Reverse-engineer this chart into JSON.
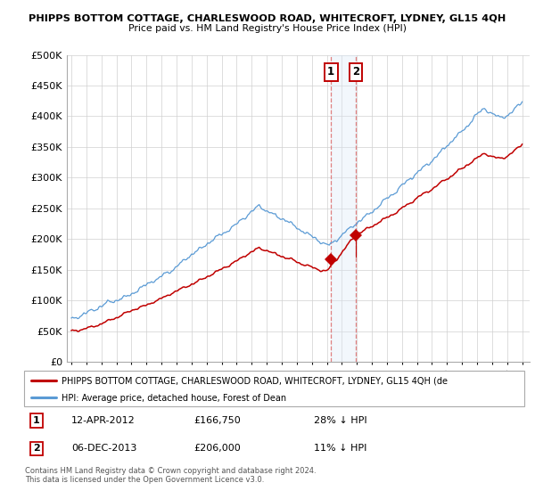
{
  "title": "PHIPPS BOTTOM COTTAGE, CHARLESWOOD ROAD, WHITECROFT, LYDNEY, GL15 4QH",
  "subtitle": "Price paid vs. HM Land Registry's House Price Index (HPI)",
  "legend_line1": "PHIPPS BOTTOM COTTAGE, CHARLESWOOD ROAD, WHITECROFT, LYDNEY, GL15 4QH (de",
  "legend_line2": "HPI: Average price, detached house, Forest of Dean",
  "annotation1_label": "1",
  "annotation1_date": "12-APR-2012",
  "annotation1_price": "£166,750",
  "annotation1_hpi": "28% ↓ HPI",
  "annotation2_label": "2",
  "annotation2_date": "06-DEC-2013",
  "annotation2_price": "£206,000",
  "annotation2_hpi": "11% ↓ HPI",
  "copyright": "Contains HM Land Registry data © Crown copyright and database right 2024.\nThis data is licensed under the Open Government Licence v3.0.",
  "hpi_color": "#5B9BD5",
  "price_color": "#C00000",
  "annotation_color": "#C00000",
  "shade_color": "#DCE9F7",
  "ylim": [
    0,
    500000
  ],
  "yticks": [
    0,
    50000,
    100000,
    150000,
    200000,
    250000,
    300000,
    350000,
    400000,
    450000,
    500000
  ],
  "sale1_year": 2012.28,
  "sale1_price": 166750,
  "sale2_year": 2013.92,
  "sale2_price": 206000,
  "shade_x1": 2012.28,
  "shade_x2": 2013.92,
  "xmin": 1995.0,
  "xmax": 2025.3
}
